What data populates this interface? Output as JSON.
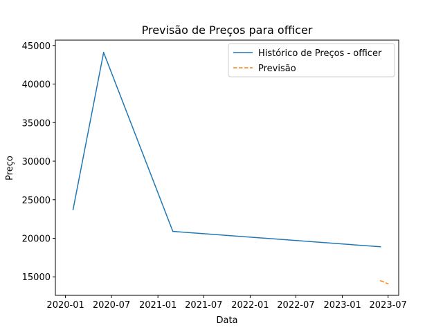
{
  "chart_data": {
    "type": "line",
    "title": "Previsão de Preços para officer",
    "xlabel": "Data",
    "ylabel": "Preço",
    "x_ticks": [
      "2020-01",
      "2020-07",
      "2021-01",
      "2021-07",
      "2022-01",
      "2022-07",
      "2023-01",
      "2023-07"
    ],
    "y_ticks": [
      15000,
      20000,
      25000,
      30000,
      35000,
      40000,
      45000
    ],
    "ylim": [
      12600,
      45700
    ],
    "xlim": [
      "2019-11-22",
      "2023-08-12"
    ],
    "grid": false,
    "legend_position": "top-right",
    "series": [
      {
        "name": "Histórico de Preços - officer",
        "color": "#1f77b4",
        "style": "solid",
        "points": [
          {
            "x": "2020-01-31",
            "y": 23700
          },
          {
            "x": "2020-05-31",
            "y": 44100
          },
          {
            "x": "2021-03-01",
            "y": 20900
          },
          {
            "x": "2023-06-01",
            "y": 18900
          }
        ]
      },
      {
        "name": "Previsão",
        "color": "#ff7f0e",
        "style": "dashed",
        "points": [
          {
            "x": "2023-06-01",
            "y": 14500
          },
          {
            "x": "2023-07-01",
            "y": 14100
          }
        ]
      }
    ]
  }
}
